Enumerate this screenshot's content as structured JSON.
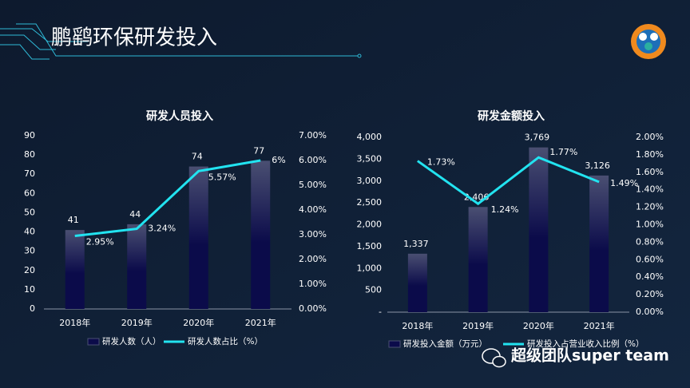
{
  "title": "鹏鹞环保研发投入",
  "watermark": "超级团队super team",
  "chart_data": [
    {
      "type": "combo",
      "title": "研发人员投入",
      "categories": [
        "2018年",
        "2019年",
        "2020年",
        "2021年"
      ],
      "series": [
        {
          "name": "研发人数（人）",
          "color": "#0b0b4a",
          "values": [
            41,
            44,
            74,
            77
          ]
        },
        {
          "name": "研发人数占比（%）",
          "color": "#22e3f0",
          "axis": "y2",
          "values": [
            2.95,
            3.24,
            5.57,
            6
          ],
          "value_labels": [
            "2.95%",
            "3.24%",
            "5.57%",
            "6%"
          ]
        }
      ],
      "ylim": [
        0,
        90
      ],
      "yticks": [
        0,
        10,
        20,
        30,
        40,
        50,
        60,
        70,
        80,
        90
      ],
      "y2lim": [
        0,
        7
      ],
      "y2ticks": [
        {
          "value": 0,
          "label": "0.00%"
        },
        {
          "value": 1,
          "label": "1.00%"
        },
        {
          "value": 2,
          "label": "2.00%"
        },
        {
          "value": 3,
          "label": "3.00%"
        },
        {
          "value": 4,
          "label": "4.00%"
        },
        {
          "value": 5,
          "label": "5.00%"
        },
        {
          "value": 6,
          "label": "6.00%"
        },
        {
          "value": 7,
          "label": "7.00%"
        }
      ]
    },
    {
      "type": "combo",
      "title": "研发金额投入",
      "categories": [
        "2018年",
        "2019年",
        "2020年",
        "2021年"
      ],
      "series": [
        {
          "name": "研发投入金额（万元）",
          "color": "#0b0b4a",
          "values": [
            1337,
            2406,
            3769,
            3126
          ],
          "value_labels": [
            "1,337",
            "2,406",
            "3,769",
            "3,126"
          ]
        },
        {
          "name": "研发投入占营业收入比例（%）",
          "color": "#22e3f0",
          "axis": "y2",
          "values": [
            1.73,
            1.24,
            1.77,
            1.49
          ],
          "value_labels": [
            "1.73%",
            "1.24%",
            "1.77%",
            "1.49%"
          ]
        }
      ],
      "ylim": [
        0,
        4000
      ],
      "yticks": [
        {
          "value": 0,
          "label": "-"
        },
        500,
        {
          "value": 1000,
          "label": "1,000"
        },
        {
          "value": 1500,
          "label": "1,500"
        },
        {
          "value": 2000,
          "label": "2,000"
        },
        {
          "value": 2500,
          "label": "2,500"
        },
        {
          "value": 3000,
          "label": "3,000"
        },
        {
          "value": 3500,
          "label": "3,500"
        },
        {
          "value": 4000,
          "label": "4,000"
        }
      ],
      "y2lim": [
        0,
        2
      ],
      "y2ticks": [
        {
          "value": 0,
          "label": "0.00%"
        },
        {
          "value": 0.2,
          "label": "0.20%"
        },
        {
          "value": 0.4,
          "label": "0.40%"
        },
        {
          "value": 0.6,
          "label": "0.60%"
        },
        {
          "value": 0.8,
          "label": "0.80%"
        },
        {
          "value": 1,
          "label": "1.00%"
        },
        {
          "value": 1.2,
          "label": "1.20%"
        },
        {
          "value": 1.4,
          "label": "1.40%"
        },
        {
          "value": 1.6,
          "label": "1.60%"
        },
        {
          "value": 1.8,
          "label": "1.80%"
        },
        {
          "value": 2,
          "label": "2.00%"
        }
      ]
    }
  ]
}
